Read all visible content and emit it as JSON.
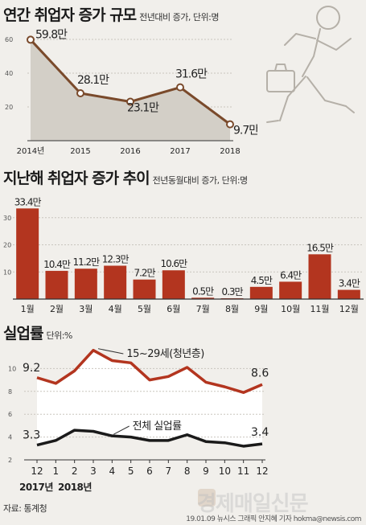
{
  "section1": {
    "title": "연간 취업자 증가 규모",
    "subtitle": "전년대비 증가, 단위:명"
  },
  "section2": {
    "title": "지난해 취업자 증가 추이",
    "subtitle": "전년동월대비 증가, 단위:명"
  },
  "section3": {
    "title": "실업률",
    "subtitle": "단위:%"
  },
  "source": "자료: 통계청",
  "credit": "19.01.09 뉴시스 그래픽 안지혜 기자 hokma@newsis.com",
  "watermark": "경제매일신문",
  "colors": {
    "accent": "#b3351f",
    "line_brown": "#7a4a2b",
    "area": "#d3cfc7",
    "bg": "#f1efeb"
  },
  "chart_data": [
    {
      "type": "area",
      "title": "연간 취업자 증가 규모",
      "categories": [
        "2014년",
        "2015",
        "2016",
        "2017",
        "2018"
      ],
      "values": [
        59.8,
        28.1,
        23.1,
        31.6,
        9.7
      ],
      "labels": [
        "59.8만",
        "28.1만",
        "23.1만",
        "31.6만",
        "9.7만"
      ],
      "ylim": [
        0,
        70
      ],
      "yticks": [
        20,
        40,
        60
      ],
      "grid": true
    },
    {
      "type": "bar",
      "title": "지난해 취업자 증가 추이",
      "categories": [
        "1월",
        "2월",
        "3월",
        "4월",
        "5월",
        "6월",
        "7월",
        "8월",
        "9월",
        "10월",
        "11월",
        "12월"
      ],
      "values": [
        33.4,
        10.4,
        11.2,
        12.3,
        7.2,
        10.6,
        0.5,
        0.3,
        4.5,
        6.4,
        16.5,
        3.4
      ],
      "labels": [
        "33.4만",
        "10.4만",
        "11.2만",
        "12.3만",
        "7.2만",
        "10.6만",
        "0.5만",
        "0.3만",
        "4.5만",
        "6.4만",
        "16.5만",
        "3.4만"
      ],
      "ylim": [
        0,
        40
      ],
      "yticks": [
        10,
        20,
        30
      ],
      "grid": true
    },
    {
      "type": "line",
      "title": "실업률",
      "x": [
        "12",
        "1",
        "2",
        "3",
        "4",
        "5",
        "6",
        "7",
        "8",
        "9",
        "10",
        "11",
        "12"
      ],
      "x_group_labels": [
        "2017년",
        "2018년"
      ],
      "series": [
        {
          "name": "15~29세(청년층)",
          "values": [
            9.2,
            8.7,
            9.8,
            11.6,
            10.7,
            10.5,
            9.0,
            9.3,
            10.1,
            8.8,
            8.4,
            7.9,
            8.6
          ],
          "start_label": "9.2",
          "end_label": "8.6"
        },
        {
          "name": "전체 실업률",
          "values": [
            3.3,
            3.7,
            4.6,
            4.5,
            4.1,
            4.0,
            3.7,
            3.7,
            4.2,
            3.6,
            3.5,
            3.2,
            3.4
          ],
          "start_label": "3.3",
          "end_label": "3.4"
        }
      ],
      "ylim": [
        2,
        12
      ],
      "yticks": [
        2,
        4,
        6,
        8,
        10
      ],
      "grid": true
    }
  ]
}
